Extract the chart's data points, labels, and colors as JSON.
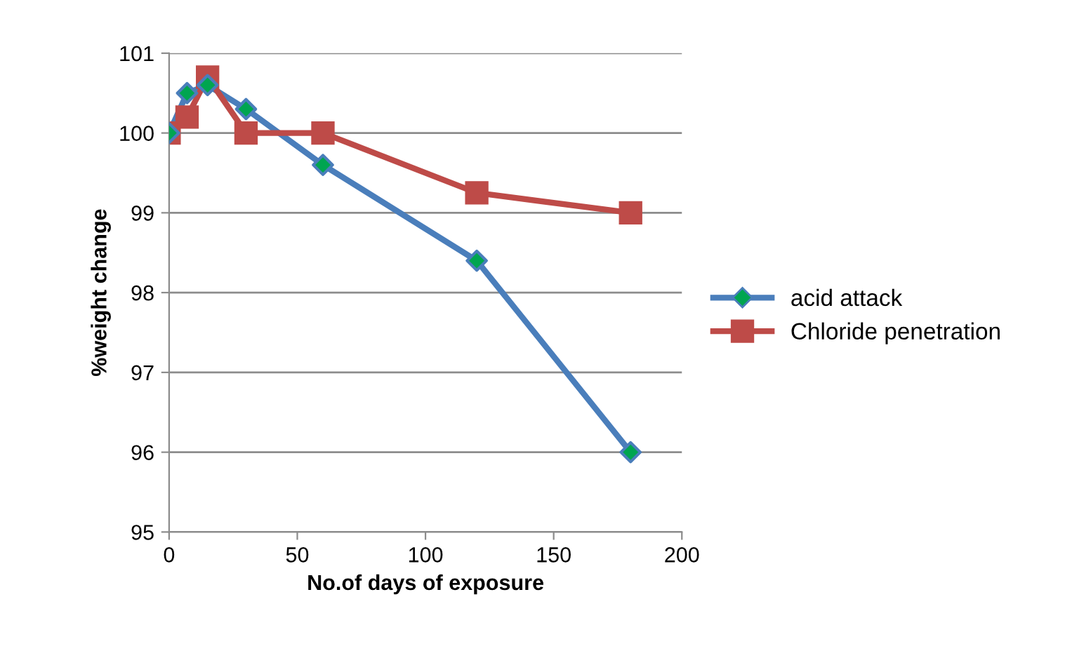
{
  "chart_data": {
    "type": "line",
    "xlabel": "No.of days of exposure",
    "ylabel": "%weight change",
    "xlim": [
      0,
      200
    ],
    "xticks": [
      0,
      50,
      100,
      150,
      200
    ],
    "ylim": [
      95,
      101
    ],
    "yticks": [
      95,
      96,
      97,
      98,
      99,
      100,
      101
    ],
    "grid": "y",
    "legend": "right",
    "series": [
      {
        "name": "acid attack",
        "color": "#4a7ebb",
        "marker": "diamond",
        "colors": [
          "#00a550",
          "#00a550",
          "#00a550",
          "#00a550",
          "#00a550",
          "#00a550",
          "#00a550"
        ],
        "x": [
          0,
          7,
          15,
          30,
          60,
          120,
          180
        ],
        "values": [
          100.0,
          100.5,
          100.6,
          100.3,
          99.6,
          98.4,
          96.0
        ]
      },
      {
        "name": "Chloride penetration",
        "color": "#be4b48",
        "marker": "square",
        "x": [
          0,
          7,
          15,
          30,
          60,
          120,
          180
        ],
        "values": [
          100.0,
          100.2,
          100.7,
          100.0,
          100.0,
          99.25,
          99.0
        ]
      }
    ]
  }
}
